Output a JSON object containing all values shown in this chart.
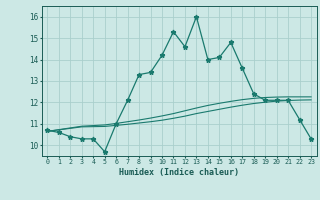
{
  "xlabel": "Humidex (Indice chaleur)",
  "x": [
    0,
    1,
    2,
    3,
    4,
    5,
    6,
    7,
    8,
    9,
    10,
    11,
    12,
    13,
    14,
    15,
    16,
    17,
    18,
    19,
    20,
    21,
    22,
    23
  ],
  "y_main": [
    10.7,
    10.6,
    10.4,
    10.3,
    10.3,
    9.7,
    11.0,
    12.1,
    13.3,
    13.4,
    14.2,
    15.3,
    14.6,
    16.0,
    14.0,
    14.1,
    14.8,
    13.6,
    12.4,
    12.1,
    12.1,
    12.1,
    11.2,
    10.3
  ],
  "y_line1": [
    10.65,
    10.72,
    10.79,
    10.86,
    10.87,
    10.88,
    10.93,
    10.98,
    11.04,
    11.1,
    11.17,
    11.26,
    11.36,
    11.48,
    11.58,
    11.68,
    11.78,
    11.87,
    11.95,
    12.01,
    12.06,
    12.09,
    12.11,
    12.12
  ],
  "y_line2": [
    10.65,
    10.73,
    10.81,
    10.89,
    10.92,
    10.95,
    11.02,
    11.1,
    11.18,
    11.27,
    11.37,
    11.48,
    11.61,
    11.74,
    11.86,
    11.96,
    12.05,
    12.13,
    12.19,
    12.23,
    12.25,
    12.26,
    12.26,
    12.26
  ],
  "main_color": "#1a7a6e",
  "line_color": "#1a7a6e",
  "bg_color": "#cce8e5",
  "grid_color": "#aacfcc",
  "text_color": "#1a5c55",
  "ylim": [
    9.5,
    16.5
  ],
  "xlim": [
    -0.5,
    23.5
  ],
  "yticks": [
    10,
    11,
    12,
    13,
    14,
    15,
    16
  ]
}
